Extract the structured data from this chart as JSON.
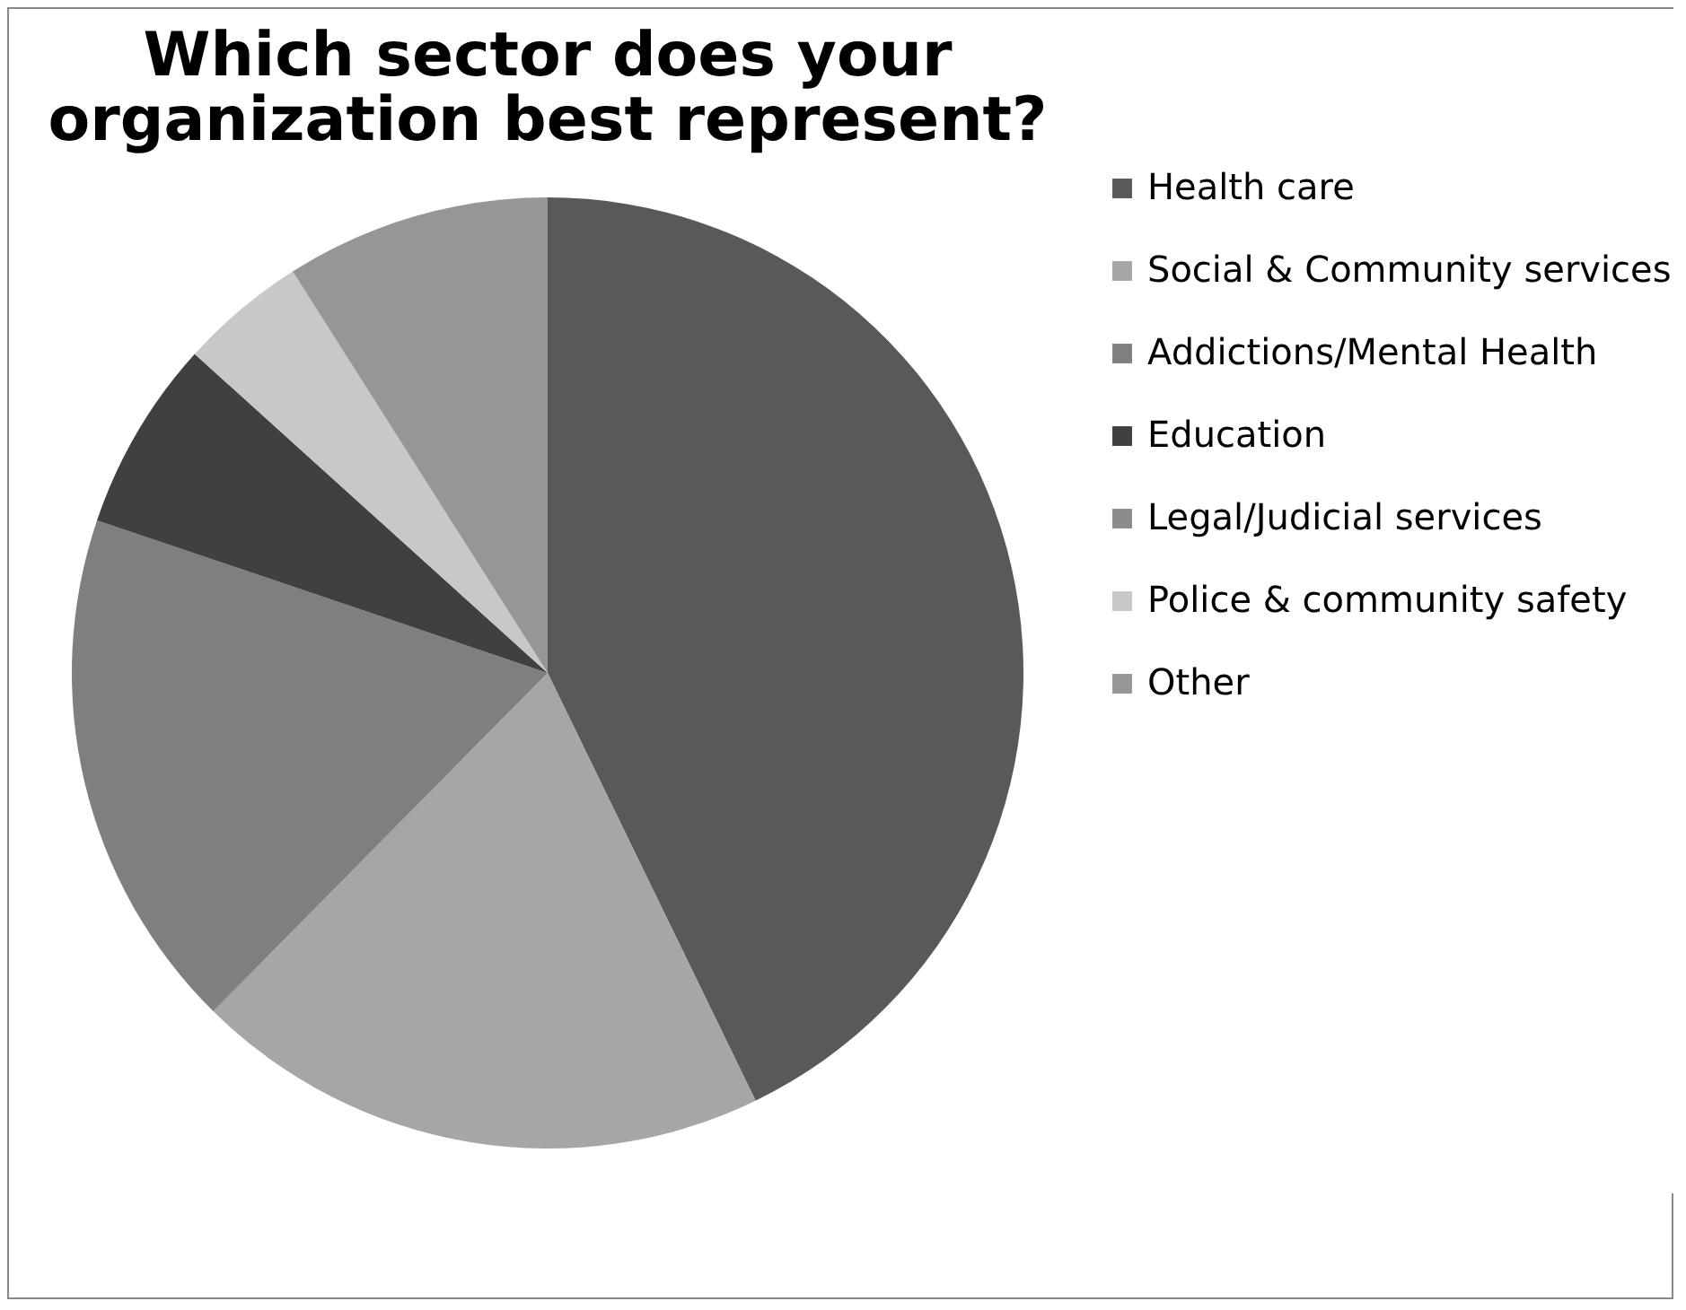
{
  "chart_data": {
    "type": "pie",
    "title": "Which sector does your organization best represent?",
    "categories": [
      "Health care",
      "Social & Community services",
      "Addictions/Mental Health",
      "Education",
      "Legal/Judicial services",
      "Police & community safety",
      "Other"
    ],
    "values": [
      42.8,
      19.6,
      17.8,
      6.5,
      0,
      4.3,
      9.0
    ],
    "colors": [
      "#595959",
      "#a6a6a6",
      "#7f7f7f",
      "#404040",
      "#8c8c8c",
      "#c8c8c8",
      "#969696"
    ],
    "legend": "right"
  }
}
